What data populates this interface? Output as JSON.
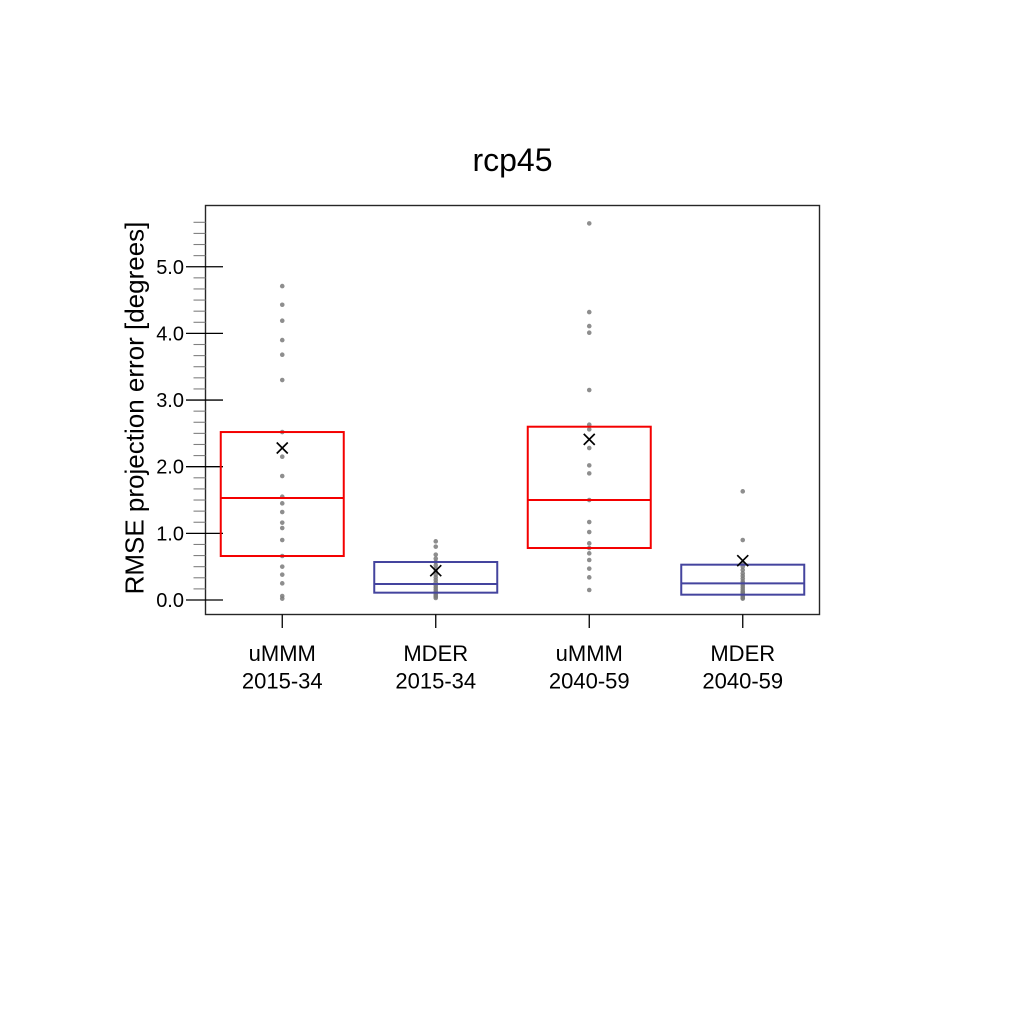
{
  "chart_data": {
    "type": "box",
    "title": "rcp45",
    "ylabel": "RMSE projection error [degrees]",
    "xlabel": "",
    "grid": false,
    "legend": "none",
    "ylim": [
      -0.21,
      5.93
    ],
    "y_axis": {
      "major_ticks": [
        {
          "value": 0,
          "label": "0.0"
        },
        {
          "value": 1,
          "label": "1.0"
        },
        {
          "value": 2,
          "label": "2.0"
        },
        {
          "value": 3,
          "label": "3.0"
        },
        {
          "value": 4,
          "label": "4.0"
        },
        {
          "value": 5,
          "label": "5.0"
        }
      ],
      "minor_tick_step": 0.16667,
      "minor_tick_max": 5.8333
    },
    "colors": {
      "red_box": "#f40000",
      "blue_box": "#44449e",
      "points": "#8a8a8a",
      "mean_marker": "#000000",
      "axis": "#262626",
      "minor_tick": "#808080"
    },
    "mean_marker": "x",
    "groups": [
      {
        "id": "uMMM-2015-34",
        "label_line1": "uMMM",
        "label_line2": "2015-34",
        "color_key": "red_box",
        "q1": 0.66,
        "median": 1.53,
        "q3": 2.52,
        "mean": 2.28,
        "points": [
          4.71,
          4.43,
          4.19,
          3.9,
          3.68,
          3.3,
          2.52,
          2.15,
          1.86,
          1.55,
          1.45,
          1.32,
          1.16,
          1.08,
          0.9,
          0.66,
          0.5,
          0.38,
          0.25,
          0.06,
          0.02
        ]
      },
      {
        "id": "MDER-2015-34",
        "label_line1": "MDER",
        "label_line2": "2015-34",
        "color_key": "blue_box",
        "q1": 0.11,
        "median": 0.24,
        "q3": 0.57,
        "mean": 0.44,
        "points": [
          0.88,
          0.8,
          0.68,
          0.62,
          0.57,
          0.52,
          0.47,
          0.43,
          0.38,
          0.34,
          0.3,
          0.26,
          0.22,
          0.19,
          0.16,
          0.13,
          0.11,
          0.09,
          0.07,
          0.05,
          0.03
        ]
      },
      {
        "id": "uMMM-2040-59",
        "label_line1": "uMMM",
        "label_line2": "2040-59",
        "color_key": "red_box",
        "q1": 0.78,
        "median": 1.5,
        "q3": 2.6,
        "mean": 2.41,
        "points": [
          5.65,
          4.32,
          4.11,
          4.01,
          3.15,
          2.63,
          2.56,
          2.28,
          2.02,
          1.9,
          1.5,
          1.17,
          1.02,
          0.85,
          0.78,
          0.7,
          0.6,
          0.47,
          0.34,
          0.15
        ]
      },
      {
        "id": "MDER-2040-59",
        "label_line1": "MDER",
        "label_line2": "2040-59",
        "color_key": "blue_box",
        "q1": 0.08,
        "median": 0.25,
        "q3": 0.53,
        "mean": 0.59,
        "points": [
          1.63,
          0.9,
          0.55,
          0.5,
          0.45,
          0.4,
          0.36,
          0.32,
          0.28,
          0.25,
          0.22,
          0.19,
          0.16,
          0.13,
          0.11,
          0.09,
          0.07,
          0.05,
          0.03,
          0.02
        ]
      }
    ]
  }
}
